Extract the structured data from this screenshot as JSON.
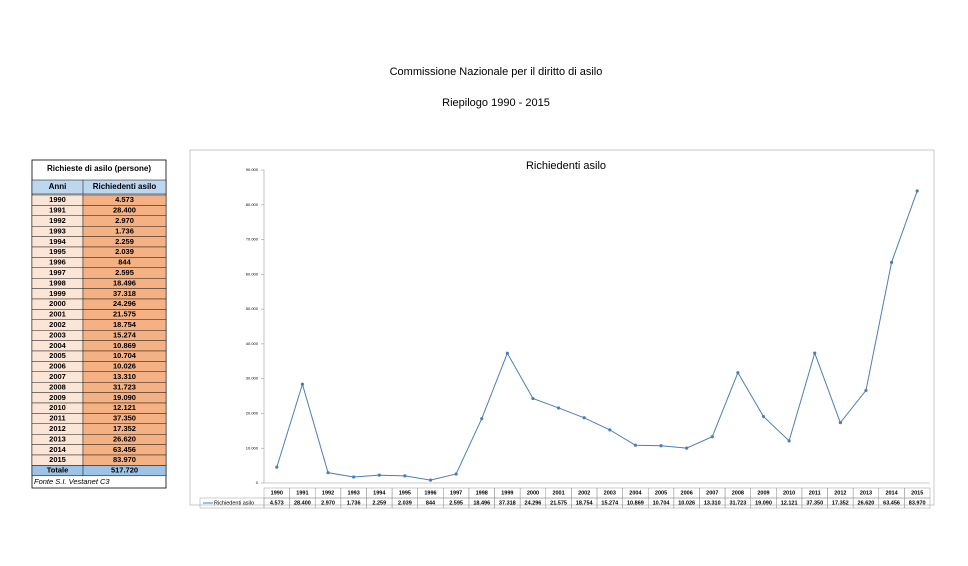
{
  "header": {
    "title": "Commissione Nazionale per il diritto di asilo",
    "subtitle": "Riepilogo 1990 - 2015"
  },
  "table": {
    "title": "Richieste di asilo (persone)",
    "columns": [
      "Anni",
      "Richiedenti asilo"
    ],
    "total": [
      "Totale",
      "517.720"
    ],
    "source": "Fonte S.I. Vestanet C3"
  },
  "chart_data": {
    "type": "line",
    "title": "Richiedenti asilo",
    "categories": [
      "1990",
      "1991",
      "1992",
      "1993",
      "1994",
      "1995",
      "1996",
      "1997",
      "1998",
      "1999",
      "2000",
      "2001",
      "2002",
      "2003",
      "2004",
      "2005",
      "2006",
      "2007",
      "2008",
      "2009",
      "2010",
      "2011",
      "2012",
      "2013",
      "2014",
      "2015"
    ],
    "series": [
      {
        "name": "Richiedenti asilo",
        "color": "#4a7ebb",
        "values": [
          4573,
          28400,
          2970,
          1736,
          2259,
          2039,
          844,
          2595,
          18496,
          37318,
          24296,
          21575,
          18754,
          15274,
          10869,
          10704,
          10026,
          13310,
          31723,
          19090,
          12121,
          37350,
          17352,
          26620,
          63456,
          83970
        ],
        "value_labels": [
          "4.573",
          "28.400",
          "2.970",
          "1.736",
          "2.259",
          "2.039",
          "844",
          "2.595",
          "18.496",
          "37.318",
          "24.296",
          "21.575",
          "18.754",
          "15.274",
          "10.869",
          "10.704",
          "10.026",
          "13.310",
          "31.723",
          "19.090",
          "12.121",
          "37.350",
          "17.352",
          "26.620",
          "63.456",
          "83.970"
        ]
      }
    ],
    "ylim": [
      0,
      90000
    ],
    "yticks": [
      0,
      {
        "value": 10000,
        "label": "10.000"
      },
      {
        "value": 20000,
        "label": "20.000"
      },
      {
        "value": 30000,
        "label": "30.000"
      },
      {
        "value": 40000,
        "label": "40.000"
      },
      {
        "value": 50000,
        "label": "50.000"
      },
      {
        "value": 60000,
        "label": "60.000"
      },
      {
        "value": 70000,
        "label": "70.000"
      },
      {
        "value": 80000,
        "label": "80.000"
      },
      {
        "value": 90000,
        "label": "90.000"
      }
    ],
    "grid": false
  }
}
